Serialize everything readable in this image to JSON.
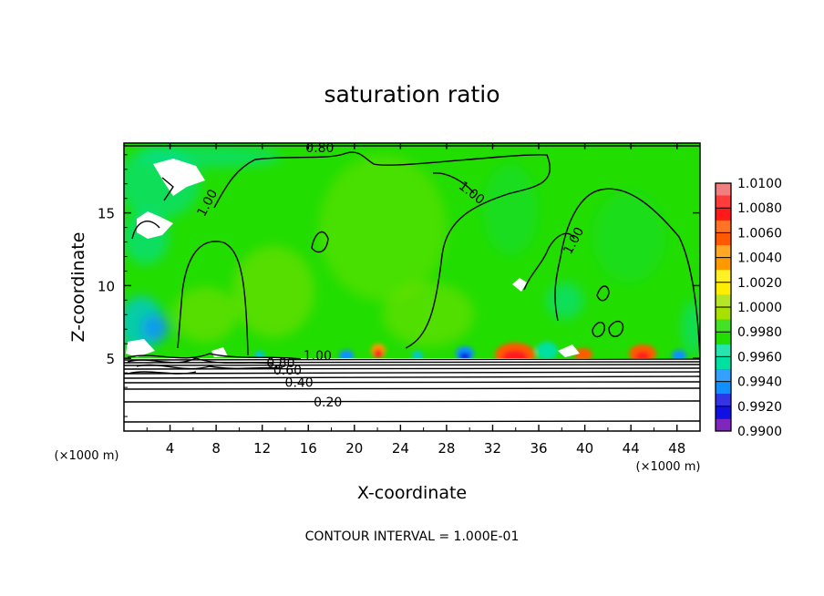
{
  "chart_data": {
    "type": "heatmap",
    "title": "saturation ratio",
    "xlabel": "X-coordinate",
    "ylabel": "Z-coordinate",
    "x_unit_left": "(×1000 m)",
    "x_unit_right": "(×1000 m)",
    "footer": "CONTOUR INTERVAL = 1.000E-01",
    "xlim": [
      0,
      50
    ],
    "ylim": [
      0,
      19.8
    ],
    "x_ticks": [
      4,
      8,
      12,
      16,
      20,
      24,
      28,
      32,
      36,
      40,
      44,
      48
    ],
    "y_ticks": [
      5,
      10,
      15
    ],
    "colorbar": {
      "levels": [
        "1.0100",
        "1.0080",
        "1.0060",
        "1.0040",
        "1.0020",
        "1.0000",
        "0.9980",
        "0.9960",
        "0.9940",
        "0.9920",
        "0.9900"
      ],
      "colors": [
        "#f08080",
        "#ff1a1a",
        "#ff5a00",
        "#ff9900",
        "#ffee00",
        "#a8e000",
        "#22dd00",
        "#00e0a0",
        "#1090ff",
        "#1010e0",
        "#6a00b0"
      ]
    },
    "contours": [
      {
        "label": "0.20",
        "z": 2.0,
        "label_x": 17.7
      },
      {
        "label": "0.40",
        "z": 3.35,
        "label_x": 15.2
      },
      {
        "label": "0.60",
        "z": 4.2,
        "label_x": 14.2
      },
      {
        "label": "0.80",
        "z": 4.7,
        "label_x": 13.6
      },
      {
        "label": "1.00",
        "z": 5.2,
        "label_x": 16.8
      },
      {
        "label": "1.00",
        "z": 15.7,
        "label_x": 7.2
      },
      {
        "label": "1.00",
        "z": 16.4,
        "label_x": 30.2
      },
      {
        "label": "1.00",
        "z": 13.1,
        "label_x": 39.0
      },
      {
        "label": "0.80",
        "z": 19.5,
        "label_x": 17.0
      }
    ]
  }
}
